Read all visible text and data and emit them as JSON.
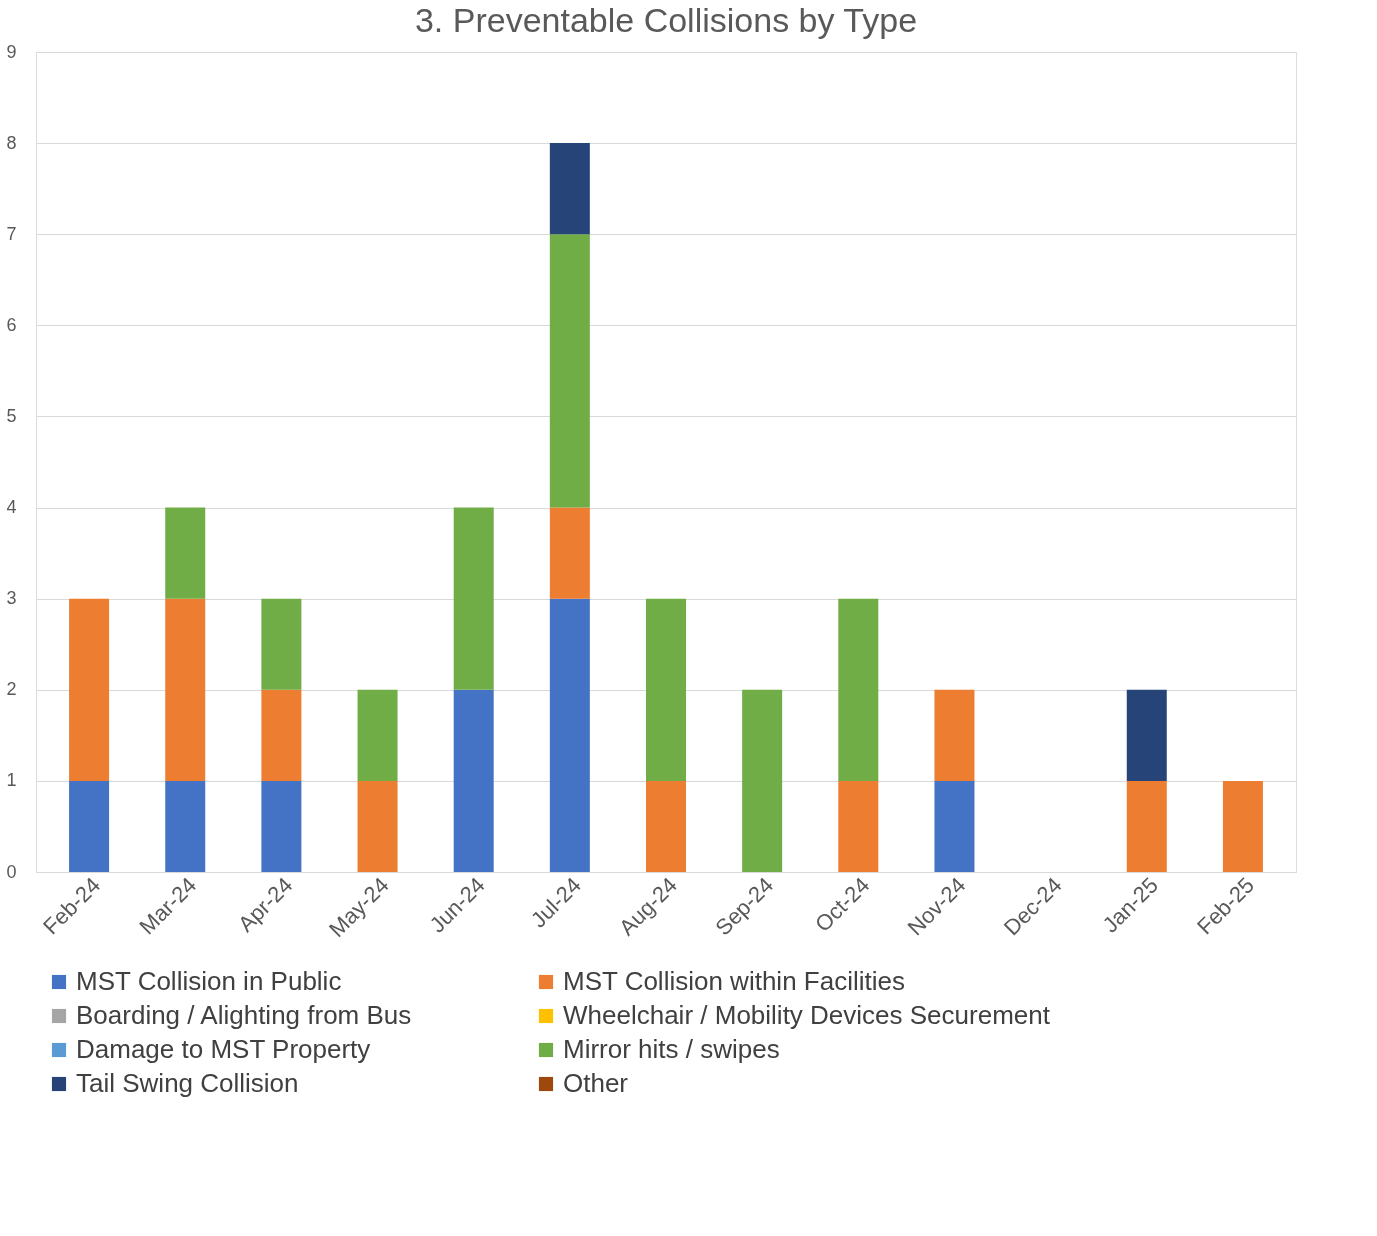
{
  "chart_data": {
    "type": "bar",
    "title": "3. Preventable Collisions by Type",
    "stacked": true,
    "categories": [
      "Feb-24",
      "Mar-24",
      "Apr-24",
      "May-24",
      "Jun-24",
      "Jul-24",
      "Aug-24",
      "Sep-24",
      "Oct-24",
      "Nov-24",
      "Dec-24",
      "Jan-25",
      "Feb-25"
    ],
    "series": [
      {
        "name": "MST Collision in Public",
        "color": "#4472c4",
        "values": [
          1,
          1,
          1,
          0,
          2,
          3,
          0,
          0,
          0,
          1,
          0,
          0,
          0
        ]
      },
      {
        "name": "MST Collision within Facilities",
        "color": "#ed7d31",
        "values": [
          2,
          2,
          1,
          1,
          0,
          1,
          1,
          0,
          1,
          1,
          0,
          1,
          1
        ]
      },
      {
        "name": "Boarding / Alighting from Bus",
        "color": "#a5a5a5",
        "values": [
          0,
          0,
          0,
          0,
          0,
          0,
          0,
          0,
          0,
          0,
          0,
          0,
          0
        ]
      },
      {
        "name": "Wheelchair / Mobility Devices Securement",
        "color": "#ffc000",
        "values": [
          0,
          0,
          0,
          0,
          0,
          0,
          0,
          0,
          0,
          0,
          0,
          0,
          0
        ]
      },
      {
        "name": "Damage to MST Property",
        "color": "#5b9bd5",
        "values": [
          0,
          0,
          0,
          0,
          0,
          0,
          0,
          0,
          0,
          0,
          0,
          0,
          0
        ]
      },
      {
        "name": "Mirror hits / swipes",
        "color": "#70ad47",
        "values": [
          0,
          1,
          1,
          1,
          2,
          3,
          2,
          2,
          2,
          0,
          0,
          0,
          0
        ]
      },
      {
        "name": "Tail Swing Collision",
        "color": "#264478",
        "values": [
          0,
          0,
          0,
          0,
          0,
          1,
          0,
          0,
          0,
          0,
          0,
          1,
          0
        ]
      },
      {
        "name": "Other",
        "color": "#9e480e",
        "values": [
          0,
          0,
          0,
          0,
          0,
          0,
          0,
          0,
          0,
          0,
          0,
          0,
          0
        ]
      }
    ],
    "ylim": [
      0,
      9
    ],
    "yticks": [
      0,
      1,
      2,
      3,
      4,
      5,
      6,
      7,
      8,
      9
    ],
    "grid": "y",
    "legend": "bottom"
  }
}
